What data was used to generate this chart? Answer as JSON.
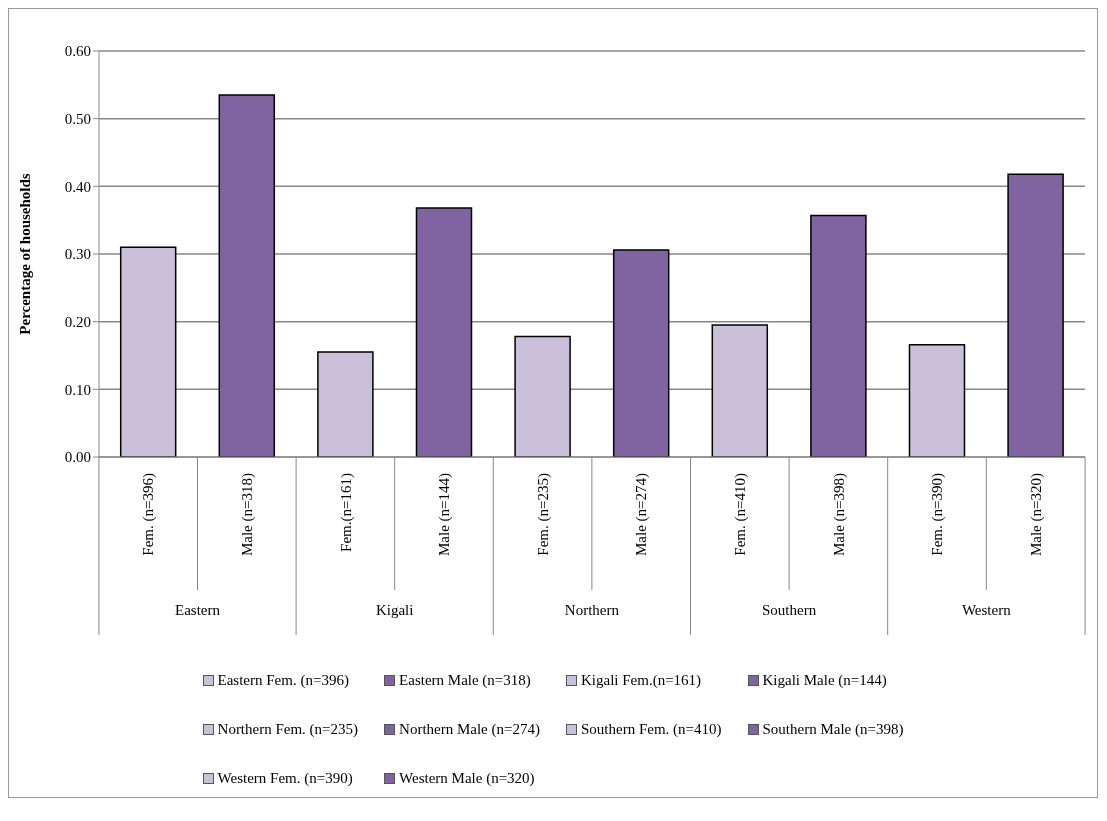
{
  "chart_data": {
    "type": "bar",
    "ylabel": "Percentage of households",
    "categories": [
      "Fem. (n=396)",
      "Male (n=318)",
      "Fem.(n=161)",
      "Male (n=144)",
      "Fem. (n=235)",
      "Male (n=274)",
      "Fem. (n=410)",
      "Male (n=398)",
      "Fem. (n=390)",
      "Male (n=320)"
    ],
    "annotations": [
      "Eastern",
      "Kigali",
      "Northern",
      "Southern",
      "Western"
    ],
    "stacked": true,
    "series": [
      {
        "name": "Eastern Fem. (n=396)",
        "color": "#cbc0d9",
        "values": [
          0.31,
          null,
          null,
          null,
          null,
          null,
          null,
          null,
          null,
          null
        ]
      },
      {
        "name": "Eastern Male (n=318)",
        "color": "#8064a2",
        "values": [
          null,
          0.535,
          null,
          null,
          null,
          null,
          null,
          null,
          null,
          null
        ]
      },
      {
        "name": "Kigali Fem.(n=161)",
        "color": "#cbc0d9",
        "values": [
          null,
          null,
          0.155,
          null,
          null,
          null,
          null,
          null,
          null,
          null
        ]
      },
      {
        "name": "Kigali Male (n=144)",
        "color": "#8064a2",
        "values": [
          null,
          null,
          null,
          0.368,
          null,
          null,
          null,
          null,
          null,
          null
        ]
      },
      {
        "name": "Northern Fem. (n=235)",
        "color": "#cbc0d9",
        "values": [
          null,
          null,
          null,
          null,
          0.178,
          null,
          null,
          null,
          null,
          null
        ]
      },
      {
        "name": "Northern Male (n=274)",
        "color": "#8064a2",
        "values": [
          null,
          null,
          null,
          null,
          null,
          0.306,
          null,
          null,
          null,
          null
        ]
      },
      {
        "name": "Southern Fem. (n=410)",
        "color": "#cbc0d9",
        "values": [
          null,
          null,
          null,
          null,
          null,
          null,
          0.195,
          null,
          null,
          null
        ]
      },
      {
        "name": "Southern Male (n=398)",
        "color": "#8064a2",
        "values": [
          null,
          null,
          null,
          null,
          null,
          null,
          null,
          0.357,
          null,
          null
        ]
      },
      {
        "name": "Western Fem. (n=390)",
        "color": "#cbc0d9",
        "values": [
          null,
          null,
          null,
          null,
          null,
          null,
          null,
          null,
          0.166,
          null
        ]
      },
      {
        "name": "Western Male (n=320)",
        "color": "#8064a2",
        "values": [
          null,
          null,
          null,
          null,
          null,
          null,
          null,
          null,
          null,
          0.418
        ]
      }
    ],
    "ylim": [
      0,
      0.6
    ],
    "yticks": [
      {
        "value": 0,
        "label": "0.00"
      },
      {
        "value": 0.1,
        "label": "0.10"
      },
      {
        "value": 0.2,
        "label": "0.20"
      },
      {
        "value": 0.3,
        "label": "0.30"
      },
      {
        "value": 0.4,
        "label": "0.40"
      },
      {
        "value": 0.5,
        "label": "0.50"
      },
      {
        "value": 0.6,
        "label": "0.60"
      }
    ],
    "grid": "y",
    "legend": "bottom"
  }
}
